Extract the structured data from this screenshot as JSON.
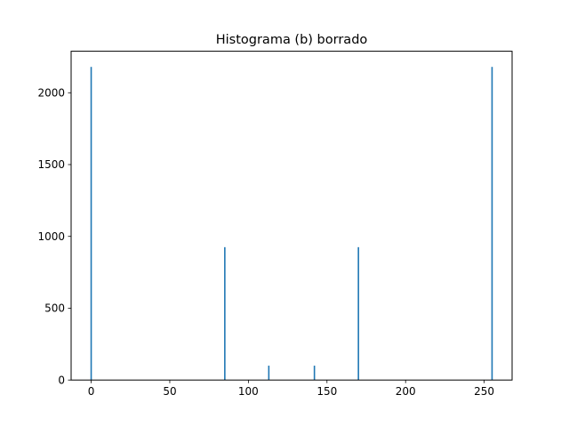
{
  "chart_data": {
    "type": "bar",
    "title": "Histograma (b) borrado",
    "xlabel": "",
    "ylabel": "",
    "xlim": [
      -12.75,
      267.75
    ],
    "ylim": [
      0,
      2289
    ],
    "xticks": [
      0,
      50,
      100,
      150,
      200,
      250
    ],
    "yticks": [
      0,
      500,
      1000,
      1500,
      2000
    ],
    "grid": false,
    "bar_color": "#1f77b4",
    "bins": [
      {
        "x": 0,
        "value": 2180
      },
      {
        "x": 85,
        "value": 925
      },
      {
        "x": 113,
        "value": 100
      },
      {
        "x": 142,
        "value": 100
      },
      {
        "x": 170,
        "value": 925
      },
      {
        "x": 255,
        "value": 2180
      }
    ]
  }
}
